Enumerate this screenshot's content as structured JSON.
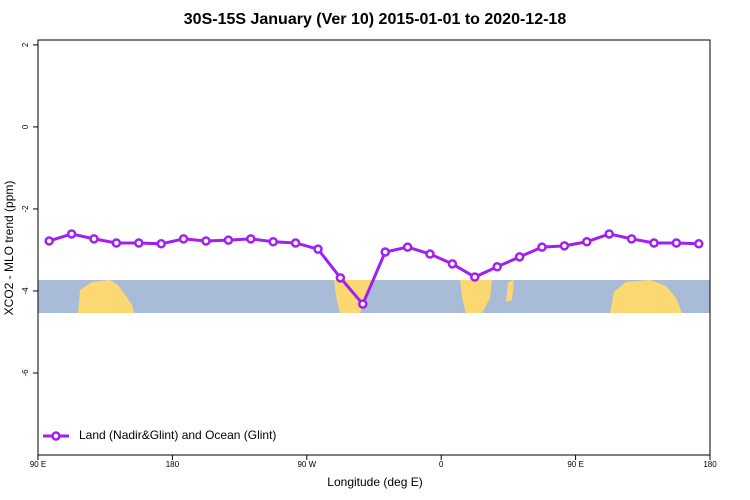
{
  "chart_data": {
    "type": "line",
    "title": "30S-15S January (Ver 10)   2015-01-01 to 2020-12-18",
    "x_label": "Longitude (deg E)",
    "y_label": "XCO2 - MLO trend (ppm)",
    "xlim": [
      90,
      540
    ],
    "xticks": [
      {
        "value": 90,
        "label": "90 E"
      },
      {
        "value": 180,
        "label": "180"
      },
      {
        "value": 270,
        "label": "90 W"
      },
      {
        "value": 360,
        "label": "0"
      },
      {
        "value": 450,
        "label": "90 E"
      },
      {
        "value": 540,
        "label": "180"
      }
    ],
    "ylim": [
      -8,
      2.12
    ],
    "yticks": [
      -6,
      -4,
      -2,
      0,
      2
    ],
    "legend": "bottom-left",
    "x": [
      97.5,
      112.5,
      127.5,
      142.5,
      157.5,
      172.5,
      187.5,
      202.5,
      217.5,
      232.5,
      247.5,
      262.5,
      277.5,
      292.5,
      307.5,
      322.5,
      337.5,
      352.5,
      367.5,
      382.5,
      397.5,
      412.5,
      427.5,
      442.5,
      457.5,
      472.5,
      487.5,
      502.5,
      517.5,
      532.5
    ],
    "series": [
      {
        "name": "Land (Nadir&Glint) and Ocean (Glint)",
        "color": "#a020f0",
        "values": [
          -2.78,
          -2.61,
          -2.73,
          -2.83,
          -2.83,
          -2.85,
          -2.73,
          -2.78,
          -2.76,
          -2.73,
          -2.8,
          -2.83,
          -2.98,
          -3.68,
          -4.32,
          -3.05,
          -2.93,
          -3.1,
          -3.34,
          -3.66,
          -3.41,
          -3.17,
          -2.93,
          -2.9,
          -2.8,
          -2.61,
          -2.73,
          -2.83,
          -2.83,
          -2.85
        ]
      }
    ]
  }
}
